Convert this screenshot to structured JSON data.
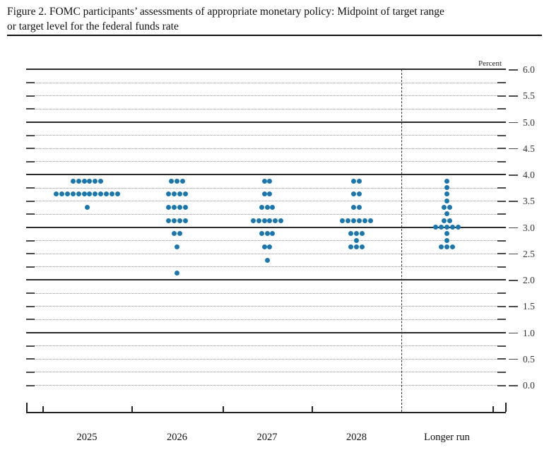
{
  "figure": {
    "title_line1": "Figure 2. FOMC participants’ assessments of appropriate monetary policy: Midpoint of target range",
    "title_line2": "or target level for the federal funds rate"
  },
  "chart_data": {
    "type": "scatter",
    "title": "FOMC participants’ assessments of appropriate monetary policy: Midpoint of target range or target level for the federal funds rate",
    "unit_label": "Percent",
    "xlabel": "",
    "ylabel": "Percent",
    "ylim": [
      0.0,
      6.0
    ],
    "grid": {
      "solid_lines_at": [
        1.0,
        2.0,
        3.0,
        4.0,
        5.0,
        6.0
      ],
      "dotted_line_step": 0.25,
      "zero_line_dotted": true
    },
    "legend_position": "none",
    "dot_color": "#1a77ae",
    "separator_before_category": "Longer run",
    "y_ticks": [
      {
        "value": 6.0,
        "label": "6.0"
      },
      {
        "value": 5.5,
        "label": "5.5"
      },
      {
        "value": 5.0,
        "label": "5.0"
      },
      {
        "value": 4.5,
        "label": "4.5"
      },
      {
        "value": 4.0,
        "label": "4.0"
      },
      {
        "value": 3.5,
        "label": "3.5"
      },
      {
        "value": 3.0,
        "label": "3.0"
      },
      {
        "value": 2.5,
        "label": "2.5"
      },
      {
        "value": 2.0,
        "label": "2.0"
      },
      {
        "value": 1.5,
        "label": "1.5"
      },
      {
        "value": 1.0,
        "label": "1.0"
      },
      {
        "value": 0.5,
        "label": "0.5"
      },
      {
        "value": 0.0,
        "label": "0.0"
      }
    ],
    "categories": [
      "2025",
      "2026",
      "2027",
      "2028",
      "Longer run"
    ],
    "series": [
      {
        "category": "2025",
        "dots": [
          {
            "rate": 3.875,
            "count": 6
          },
          {
            "rate": 3.625,
            "count": 12
          },
          {
            "rate": 3.375,
            "count": 1
          }
        ]
      },
      {
        "category": "2026",
        "dots": [
          {
            "rate": 3.875,
            "count": 3
          },
          {
            "rate": 3.625,
            "count": 4
          },
          {
            "rate": 3.375,
            "count": 4
          },
          {
            "rate": 3.125,
            "count": 4
          },
          {
            "rate": 2.875,
            "count": 2
          },
          {
            "rate": 2.625,
            "count": 1
          },
          {
            "rate": 2.125,
            "count": 1
          }
        ]
      },
      {
        "category": "2027",
        "dots": [
          {
            "rate": 3.875,
            "count": 2
          },
          {
            "rate": 3.625,
            "count": 2
          },
          {
            "rate": 3.375,
            "count": 3
          },
          {
            "rate": 3.125,
            "count": 6
          },
          {
            "rate": 2.875,
            "count": 3
          },
          {
            "rate": 2.625,
            "count": 2
          },
          {
            "rate": 2.375,
            "count": 1
          }
        ]
      },
      {
        "category": "2028",
        "dots": [
          {
            "rate": 3.875,
            "count": 2
          },
          {
            "rate": 3.625,
            "count": 2
          },
          {
            "rate": 3.375,
            "count": 2
          },
          {
            "rate": 3.125,
            "count": 6
          },
          {
            "rate": 2.875,
            "count": 3
          },
          {
            "rate": 2.75,
            "count": 1
          },
          {
            "rate": 2.625,
            "count": 3
          }
        ]
      },
      {
        "category": "Longer run",
        "dots": [
          {
            "rate": 3.875,
            "count": 1
          },
          {
            "rate": 3.75,
            "count": 1
          },
          {
            "rate": 3.625,
            "count": 1
          },
          {
            "rate": 3.5,
            "count": 1
          },
          {
            "rate": 3.375,
            "count": 2
          },
          {
            "rate": 3.25,
            "count": 1
          },
          {
            "rate": 3.125,
            "count": 2
          },
          {
            "rate": 3.0,
            "count": 5
          },
          {
            "rate": 2.875,
            "count": 1
          },
          {
            "rate": 2.75,
            "count": 1
          },
          {
            "rate": 2.625,
            "count": 3
          }
        ]
      }
    ]
  }
}
